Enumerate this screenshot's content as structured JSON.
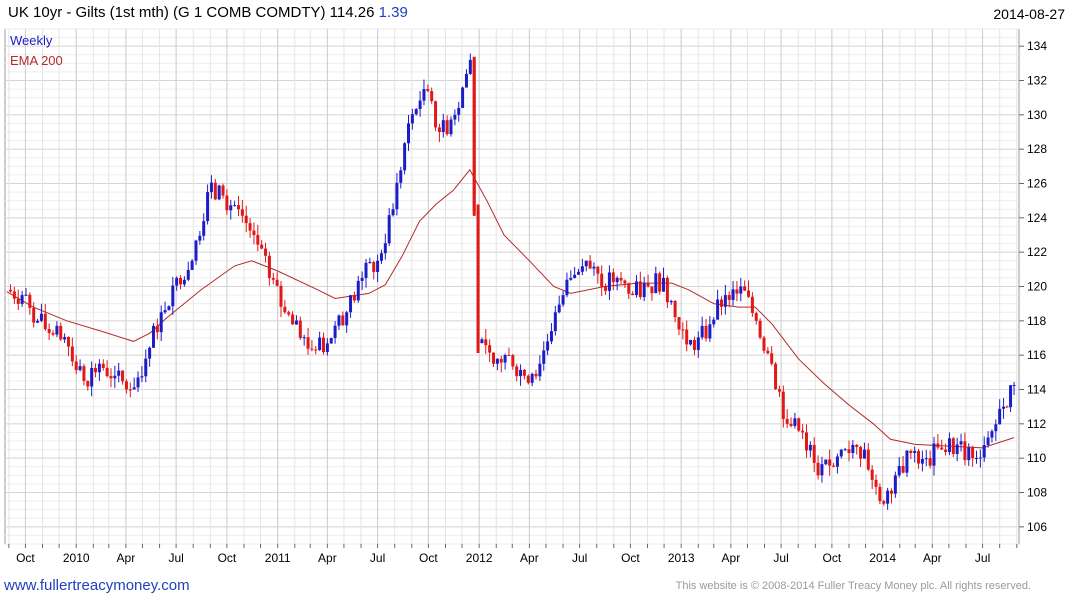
{
  "header": {
    "title": "UK 10yr - Gilts (1st mth)  (G 1 COMB COMDTY) 114.26",
    "change": "1.39",
    "date": "2014-08-27"
  },
  "legend": {
    "period": "Weekly",
    "ema": "EMA 200"
  },
  "footer": {
    "site": "www.fullertreacymoney.com",
    "copyright": "This website is © 2008-2014 Fuller Treacy Money plc. All rights reserved."
  },
  "colors": {
    "up": "#1d1dc8",
    "down": "#e01818",
    "ema": "#b22a2a",
    "grid": "#d6d6d6",
    "link": "#1f3fbf"
  },
  "chart_data": {
    "type": "line",
    "ylim": [
      105,
      135
    ],
    "y_ticks": [
      106,
      108,
      110,
      112,
      114,
      116,
      118,
      120,
      122,
      124,
      126,
      128,
      130,
      132,
      134
    ],
    "x_ticks": [
      "Oct",
      "2010",
      "Apr",
      "Jul",
      "Oct",
      "2011",
      "Apr",
      "Jul",
      "Oct",
      "2012",
      "Apr",
      "Jul",
      "Oct",
      "2013",
      "Apr",
      "Jul",
      "Oct",
      "2014",
      "Apr",
      "Jul"
    ],
    "x_tick_dates": [
      "2009-10-01",
      "2010-01-01",
      "2010-04-01",
      "2010-07-01",
      "2010-10-01",
      "2011-01-01",
      "2011-04-01",
      "2011-07-01",
      "2011-10-01",
      "2012-01-01",
      "2012-04-01",
      "2012-07-01",
      "2012-10-01",
      "2013-01-01",
      "2013-04-01",
      "2013-07-01",
      "2013-10-01",
      "2014-01-01",
      "2014-04-01",
      "2014-07-01"
    ],
    "x_range": [
      "2009-08-25",
      "2014-09-05"
    ],
    "series": [
      {
        "name": "Weekly",
        "style": "candles",
        "points": [
          [
            "2009-08-28",
            119.8
          ],
          [
            "2009-09-25",
            119.5
          ],
          [
            "2009-10-23",
            118.0
          ],
          [
            "2009-11-20",
            117.2
          ],
          [
            "2009-12-18",
            116.5
          ],
          [
            "2010-01-15",
            114.5
          ],
          [
            "2010-02-12",
            115.5
          ],
          [
            "2010-03-12",
            114.8
          ],
          [
            "2010-04-09",
            114.0
          ],
          [
            "2010-05-07",
            115.8
          ],
          [
            "2010-06-04",
            118.5
          ],
          [
            "2010-07-02",
            120.5
          ],
          [
            "2010-07-30",
            121.5
          ],
          [
            "2010-08-27",
            125.5
          ],
          [
            "2010-09-24",
            125.3
          ],
          [
            "2010-10-22",
            124.5
          ],
          [
            "2010-11-19",
            123.0
          ],
          [
            "2010-12-17",
            120.5
          ],
          [
            "2011-01-14",
            118.5
          ],
          [
            "2011-02-11",
            117.0
          ],
          [
            "2011-03-11",
            116.3
          ],
          [
            "2011-04-08",
            117.0
          ],
          [
            "2011-05-06",
            118.5
          ],
          [
            "2011-06-03",
            120.5
          ],
          [
            "2011-07-01",
            121.5
          ],
          [
            "2011-07-29",
            124.5
          ],
          [
            "2011-08-26",
            129.5
          ],
          [
            "2011-09-23",
            131.5
          ],
          [
            "2011-10-21",
            129.0
          ],
          [
            "2011-11-18",
            130.0
          ],
          [
            "2011-12-16",
            133.2
          ],
          [
            "2011-12-30",
            116.7
          ],
          [
            "2012-01-27",
            115.5
          ],
          [
            "2012-02-24",
            116.0
          ],
          [
            "2012-03-23",
            114.8
          ],
          [
            "2012-04-20",
            115.5
          ],
          [
            "2012-05-18",
            118.5
          ],
          [
            "2012-06-15",
            120.5
          ],
          [
            "2012-07-13",
            121.5
          ],
          [
            "2012-08-10",
            120.0
          ],
          [
            "2012-09-07",
            120.5
          ],
          [
            "2012-10-05",
            119.5
          ],
          [
            "2012-11-02",
            120.0
          ],
          [
            "2012-11-30",
            120.5
          ],
          [
            "2012-12-28",
            117.5
          ],
          [
            "2013-01-25",
            116.3
          ],
          [
            "2013-02-22",
            117.8
          ],
          [
            "2013-03-22",
            119.5
          ],
          [
            "2013-04-19",
            120.0
          ],
          [
            "2013-05-17",
            118.0
          ],
          [
            "2013-06-14",
            115.5
          ],
          [
            "2013-07-12",
            112.0
          ],
          [
            "2013-08-09",
            111.5
          ],
          [
            "2013-09-06",
            109.0
          ],
          [
            "2013-10-04",
            109.5
          ],
          [
            "2013-11-01",
            110.3
          ],
          [
            "2013-11-29",
            110.5
          ],
          [
            "2013-12-27",
            107.5
          ],
          [
            "2014-01-24",
            109.0
          ],
          [
            "2014-02-21",
            110.3
          ],
          [
            "2014-03-21",
            110.0
          ],
          [
            "2014-04-18",
            110.5
          ],
          [
            "2014-05-16",
            110.8
          ],
          [
            "2014-06-13",
            110.0
          ],
          [
            "2014-07-11",
            111.2
          ],
          [
            "2014-08-08",
            113.0
          ],
          [
            "2014-08-27",
            114.26
          ]
        ]
      },
      {
        "name": "EMA 200",
        "style": "line",
        "points": [
          [
            "2009-08-28",
            119.7
          ],
          [
            "2009-10-15",
            118.8
          ],
          [
            "2009-12-15",
            118.0
          ],
          [
            "2010-02-15",
            117.4
          ],
          [
            "2010-04-15",
            116.8
          ],
          [
            "2010-05-15",
            117.3
          ],
          [
            "2010-06-15",
            118.2
          ],
          [
            "2010-08-15",
            119.8
          ],
          [
            "2010-10-15",
            121.2
          ],
          [
            "2010-11-15",
            121.5
          ],
          [
            "2011-01-01",
            120.9
          ],
          [
            "2011-03-15",
            119.8
          ],
          [
            "2011-04-15",
            119.3
          ],
          [
            "2011-06-15",
            119.6
          ],
          [
            "2011-07-15",
            120.1
          ],
          [
            "2011-08-15",
            121.8
          ],
          [
            "2011-09-15",
            123.8
          ],
          [
            "2011-10-15",
            124.8
          ],
          [
            "2011-11-15",
            125.6
          ],
          [
            "2011-12-15",
            126.8
          ],
          [
            "2012-01-15",
            125.0
          ],
          [
            "2012-02-15",
            123.0
          ],
          [
            "2012-04-01",
            121.5
          ],
          [
            "2012-05-15",
            120.0
          ],
          [
            "2012-06-15",
            119.6
          ],
          [
            "2012-08-15",
            120.0
          ],
          [
            "2012-10-15",
            120.2
          ],
          [
            "2012-12-15",
            120.2
          ],
          [
            "2013-01-15",
            119.8
          ],
          [
            "2013-03-01",
            119.0
          ],
          [
            "2013-04-15",
            118.8
          ],
          [
            "2013-05-15",
            118.8
          ],
          [
            "2013-06-15",
            117.8
          ],
          [
            "2013-08-01",
            115.8
          ],
          [
            "2013-09-15",
            114.4
          ],
          [
            "2013-11-01",
            113.1
          ],
          [
            "2013-12-15",
            112.0
          ],
          [
            "2014-01-15",
            111.1
          ],
          [
            "2014-03-01",
            110.8
          ],
          [
            "2014-05-01",
            110.7
          ],
          [
            "2014-07-01",
            110.6
          ],
          [
            "2014-08-27",
            111.2
          ]
        ]
      }
    ]
  }
}
